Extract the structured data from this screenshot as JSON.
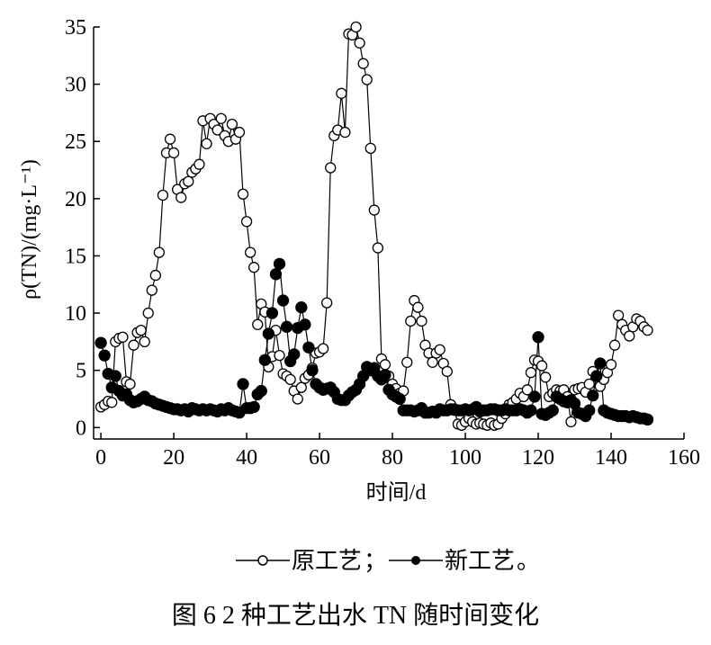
{
  "chart_data": {
    "type": "line",
    "x_label": "时间/d",
    "y_label": "ρ(TN)/(mg·L⁻¹)",
    "caption": "图 6   2 种工艺出水 TN 随时间变化",
    "legend_separator": "；",
    "legend_end": "。",
    "xlim": [
      -2,
      160
    ],
    "ylim": [
      -1,
      35
    ],
    "xticks": [
      0,
      20,
      40,
      60,
      80,
      100,
      120,
      140,
      160
    ],
    "yticks": [
      0,
      5,
      10,
      15,
      20,
      25,
      30,
      35
    ],
    "x": [
      0,
      1,
      2,
      3,
      4,
      5,
      6,
      7,
      8,
      9,
      10,
      11,
      12,
      13,
      14,
      15,
      16,
      17,
      18,
      19,
      20,
      21,
      22,
      23,
      24,
      25,
      26,
      27,
      28,
      29,
      30,
      31,
      32,
      33,
      34,
      35,
      36,
      37,
      38,
      39,
      40,
      41,
      42,
      43,
      44,
      45,
      46,
      47,
      48,
      49,
      50,
      51,
      52,
      53,
      54,
      55,
      56,
      57,
      58,
      59,
      60,
      61,
      62,
      63,
      64,
      65,
      66,
      67,
      68,
      69,
      70,
      71,
      72,
      73,
      74,
      75,
      76,
      77,
      78,
      79,
      80,
      81,
      82,
      83,
      84,
      85,
      86,
      87,
      88,
      89,
      90,
      91,
      92,
      93,
      94,
      95,
      96,
      97,
      98,
      99,
      100,
      101,
      102,
      103,
      104,
      105,
      106,
      107,
      108,
      109,
      110,
      111,
      112,
      113,
      114,
      115,
      116,
      117,
      118,
      119,
      120,
      121,
      122,
      123,
      124,
      125,
      126,
      127,
      128,
      129,
      130,
      131,
      132,
      133,
      134,
      135,
      136,
      137,
      138,
      139,
      140,
      141,
      142,
      143,
      144,
      145,
      146,
      147,
      148,
      149,
      150
    ],
    "series": [
      {
        "name": "原工艺",
        "color": "#000000",
        "marker": "open",
        "values": [
          1.8,
          2.0,
          2.3,
          2.2,
          7.5,
          7.8,
          7.9,
          4.0,
          3.8,
          7.2,
          8.3,
          8.5,
          7.5,
          10,
          12,
          13.3,
          15.3,
          20.3,
          24,
          25.2,
          24,
          20.8,
          20.1,
          21.3,
          21.5,
          22.3,
          22.6,
          23,
          26.8,
          24.8,
          27,
          26.5,
          26,
          27,
          25.5,
          25,
          26.5,
          25.2,
          25.8,
          20.4,
          18,
          15.3,
          14,
          9,
          10.8,
          10.1,
          5.3,
          6.2,
          8.5,
          6.3,
          4.7,
          4.5,
          4.2,
          3.2,
          2.5,
          3.5,
          4.3,
          4.6,
          5.2,
          6.5,
          6.6,
          6.9,
          10.9,
          22.7,
          25.5,
          26,
          29.2,
          25.8,
          34.4,
          34.3,
          35,
          33.6,
          31.8,
          30.4,
          24.4,
          19,
          15.7,
          6,
          5.5,
          4.5,
          3.8,
          3.4,
          3,
          3.2,
          5.7,
          9.3,
          11.1,
          10.5,
          9.3,
          7.2,
          6.5,
          5.7,
          6.5,
          6.8,
          5.6,
          4.9,
          2,
          1.5,
          0.3,
          0.2,
          0.5,
          0.8,
          0.5,
          0.3,
          0.4,
          0.3,
          0.2,
          0.4,
          0.2,
          0.3,
          0.8,
          1.2,
          2,
          2.2,
          2.5,
          3,
          2.7,
          3.3,
          4.8,
          5.9,
          5.8,
          5.4,
          4.4,
          2.7,
          3,
          3.3,
          3.2,
          3.3,
          2.7,
          0.5,
          3.3,
          3.4,
          3.5,
          3.1,
          3.8,
          4.9,
          4.5,
          3.6,
          4.2,
          4.8,
          5.5,
          7.2,
          9.8,
          9,
          8.5,
          8,
          8.8,
          9.5,
          9.3,
          8.8,
          8.5
        ]
      },
      {
        "name": "新工艺",
        "color": "#000000",
        "marker": "filled",
        "values": [
          7.4,
          6.3,
          4.7,
          3.5,
          4.5,
          3.2,
          2.8,
          2.9,
          2.4,
          2.2,
          2.3,
          2.5,
          2.7,
          2.4,
          2.3,
          2.1,
          2,
          1.9,
          1.8,
          1.7,
          1.6,
          1.6,
          1.5,
          1.6,
          1.4,
          1.7,
          1.6,
          1.5,
          1.6,
          1.5,
          1.6,
          1.5,
          1.4,
          1.6,
          1.5,
          1.7,
          1.5,
          1.4,
          1.3,
          3.8,
          1.7,
          1.7,
          1.8,
          2.9,
          3.2,
          5.9,
          8.2,
          10,
          13.4,
          14.3,
          11.1,
          8.8,
          5.8,
          6.4,
          8.7,
          10.5,
          9,
          7,
          5,
          3.8,
          3.5,
          3.3,
          3.4,
          3.5,
          3.1,
          2.5,
          2.4,
          2.4,
          2.8,
          3.1,
          3.3,
          3.8,
          4.5,
          5.3,
          5,
          5.2,
          4.5,
          4.2,
          4.6,
          3.3,
          2.9,
          2.7,
          2.5,
          1.5,
          1.5,
          1.5,
          1.4,
          1.5,
          1.7,
          1.3,
          1.3,
          1.4,
          1.3,
          1.6,
          1.5,
          1.5,
          1.6,
          1.6,
          1.5,
          1.5,
          1.6,
          1.5,
          1.6,
          1.8,
          1.4,
          1.5,
          1.5,
          1.6,
          1.6,
          1.5,
          1.5,
          1.6,
          1.5,
          1.5,
          1.5,
          1.6,
          1.5,
          1.3,
          1.5,
          2.7,
          7.9,
          1.2,
          1.1,
          1.3,
          1.5,
          2.7,
          2.5,
          2.3,
          2.2,
          2.4,
          2.1,
          1.3,
          1.2,
          1.0,
          1.5,
          2.8,
          4.5,
          5.6,
          1.5,
          1.3,
          1.2,
          1.1,
          1.0,
          1.0,
          1.0,
          0.9,
          1.0,
          0.9,
          0.8,
          0.8,
          0.7
        ]
      }
    ]
  }
}
